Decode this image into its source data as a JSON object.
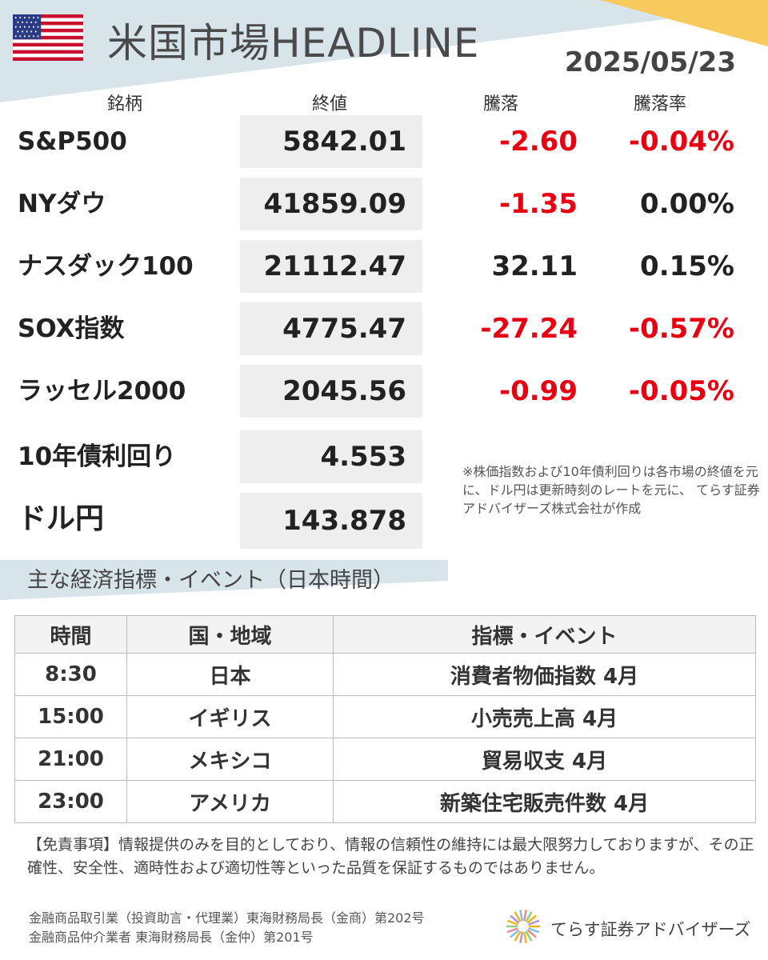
{
  "header": {
    "title": "米国市場HEADLINE",
    "date": "2025/05/23"
  },
  "columns": {
    "name": "銘柄",
    "close": "終値",
    "change": "騰落",
    "change_pct": "騰落率"
  },
  "market_rows": [
    {
      "name": "S&P500",
      "close": "5842.01",
      "change": "-2.60",
      "change_pct": "-0.04%"
    },
    {
      "name": "NYダウ",
      "close": "41859.09",
      "change": "-1.35",
      "change_pct": "0.00%"
    },
    {
      "name": "ナスダック100",
      "close": "21112.47",
      "change": "32.11",
      "change_pct": "0.15%"
    },
    {
      "name": "SOX指数",
      "close": "4775.47",
      "change": "-27.24",
      "change_pct": "-0.57%"
    },
    {
      "name": "ラッセル2000",
      "close": "2045.56",
      "change": "-0.99",
      "change_pct": "-0.05%"
    },
    {
      "name": "10年債利回り",
      "close": "4.553"
    },
    {
      "name": "ドル円",
      "close": "143.878"
    }
  ],
  "note": "※株価指数および10年債利回りは各市場の終値を元に、ドル円は更新時刻のレートを元に、 てらす証券アドバイザーズ株式会社が作成",
  "events": {
    "title": "主な経済指標・イベント（日本時間）",
    "headers": [
      "時間",
      "国・地域",
      "指標・イベント"
    ],
    "rows": [
      [
        "8:30",
        "日本",
        "消費者物価指数 4月"
      ],
      [
        "15:00",
        "イギリス",
        "小売売上高 4月"
      ],
      [
        "21:00",
        "メキシコ",
        "貿易収支 4月"
      ],
      [
        "23:00",
        "アメリカ",
        "新築住宅販売件数 4月"
      ]
    ]
  },
  "disclaimer": "【免責事項】情報提供のみを目的としており、情報の信頼性の維持には最大限努力しておりますが、その正確性、安全性、適時性および適切性等といった品質を保証するものではありません。",
  "registration": [
    "金融商品取引業（投資助言・代理業）東海財務局長（金商）第202号",
    "金融商品仲介業者 東海財務局長（金仲）第201号"
  ],
  "brand": "てらす証券アドバイザーズ",
  "colors": {
    "negative": "#e60012",
    "band": "#d7e4ea",
    "accent": "#f8c95c"
  },
  "icons": {
    "flag": "us-flag-icon",
    "logo": "sunburst-logo-icon"
  }
}
